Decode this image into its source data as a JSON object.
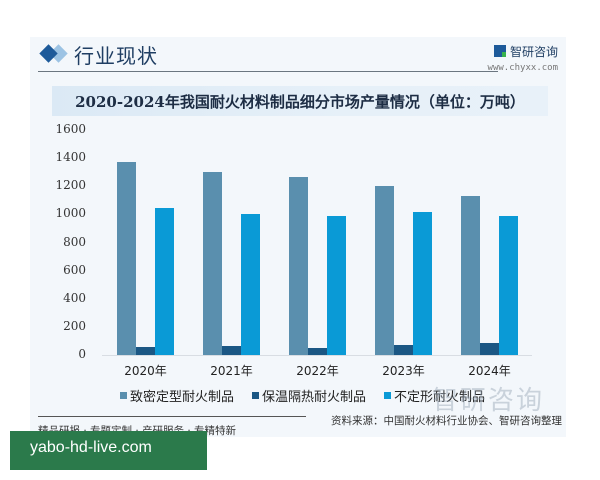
{
  "header": {
    "section_title": "行业现状",
    "brand_name": "智研咨询",
    "brand_url": "www.chyxx.com"
  },
  "chart_data": {
    "type": "bar",
    "title": "2020-2024年我国耐火材料制品细分市场产量情况（单位：万吨）",
    "xlabel": "",
    "ylabel": "",
    "unit": "万吨",
    "categories": [
      "2020年",
      "2021年",
      "2022年",
      "2023年",
      "2024年"
    ],
    "series": [
      {
        "name": "致密定型耐火制品",
        "color": "#5a8fae",
        "values": [
          1370,
          1300,
          1265,
          1205,
          1130
        ]
      },
      {
        "name": "保温隔热耐火制品",
        "color": "#1b5784",
        "values": [
          60,
          62,
          52,
          70,
          83
        ]
      },
      {
        "name": "不定形耐火制品",
        "color": "#0a9ad6",
        "values": [
          1045,
          1000,
          985,
          1015,
          990
        ]
      }
    ],
    "ylim": [
      0,
      1600
    ],
    "yticks": [
      0,
      200,
      400,
      600,
      800,
      1000,
      1200,
      1400,
      1600
    ],
    "grid": false,
    "legend_position": "bottom"
  },
  "footer": {
    "source": "资料来源：中国耐火材料行业协会、智研咨询整理",
    "tagline": "精品研报 · 专题定制 · 产研服务 · 专精特新",
    "watermark": "智研咨询"
  },
  "overlay": {
    "text": "yabo-hd-live.com",
    "color": "#2b7a4b"
  }
}
